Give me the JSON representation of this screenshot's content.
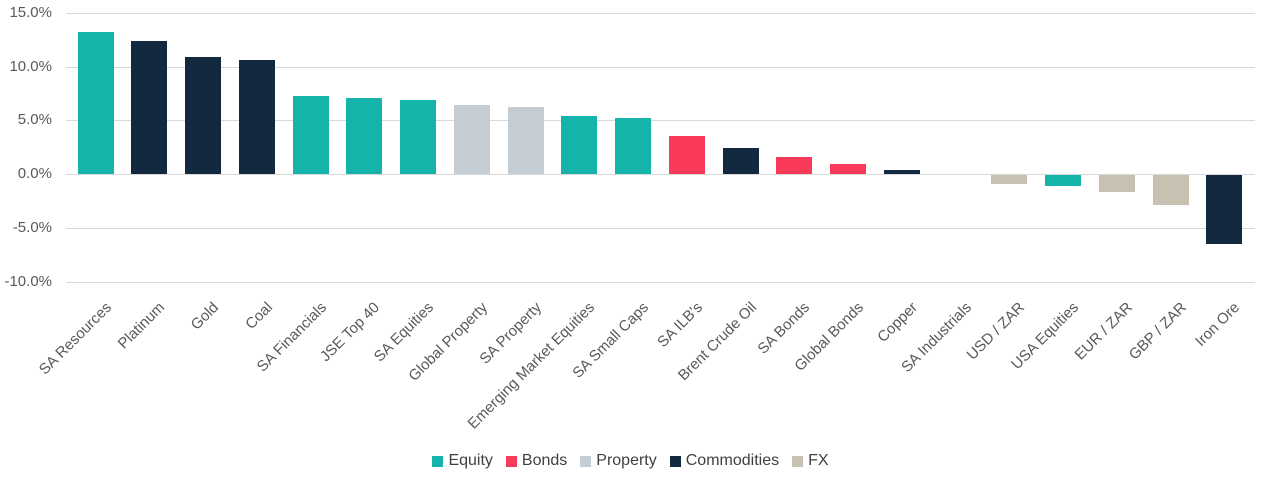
{
  "chart_data": {
    "type": "bar",
    "title": "",
    "xlabel": "",
    "ylabel": "",
    "unit": "%",
    "ylim": [
      -10,
      15
    ],
    "grid": true,
    "legend_position": "bottom",
    "yticks": [
      {
        "value": 15,
        "label": "15.0%"
      },
      {
        "value": 10,
        "label": "10.0%"
      },
      {
        "value": 5,
        "label": "5.0%"
      },
      {
        "value": 0,
        "label": "0.0%"
      },
      {
        "value": -5,
        "label": "-5.0%"
      },
      {
        "value": -10,
        "label": "-10.0%"
      }
    ],
    "legend": [
      {
        "name": "Equity",
        "color": "#14B4AB"
      },
      {
        "name": "Bonds",
        "color": "#FA3A59"
      },
      {
        "name": "Property",
        "color": "#C4CCD4"
      },
      {
        "name": "Commodities",
        "color": "#12293F"
      },
      {
        "name": "FX",
        "color": "#C8C1B2"
      }
    ],
    "bars": [
      {
        "label": "SA Resources",
        "value": 13.2,
        "series": "Equity"
      },
      {
        "label": "Platinum",
        "value": 12.4,
        "series": "Commodities"
      },
      {
        "label": "Gold",
        "value": 10.9,
        "series": "Commodities"
      },
      {
        "label": "Coal",
        "value": 10.6,
        "series": "Commodities"
      },
      {
        "label": "SA Financials",
        "value": 7.3,
        "series": "Equity"
      },
      {
        "label": "JSE Top 40",
        "value": 7.1,
        "series": "Equity"
      },
      {
        "label": "SA Equities",
        "value": 6.9,
        "series": "Equity"
      },
      {
        "label": "Global Property",
        "value": 6.4,
        "series": "Property"
      },
      {
        "label": "SA Property",
        "value": 6.2,
        "series": "Property"
      },
      {
        "label": "Emerging Market Equities",
        "value": 5.4,
        "series": "Equity"
      },
      {
        "label": "SA Small Caps",
        "value": 5.2,
        "series": "Equity"
      },
      {
        "label": "SA ILB's",
        "value": 3.5,
        "series": "Bonds"
      },
      {
        "label": "Brent Crude Oil",
        "value": 2.4,
        "series": "Commodities"
      },
      {
        "label": "SA Bonds",
        "value": 1.6,
        "series": "Bonds"
      },
      {
        "label": "Global Bonds",
        "value": 0.9,
        "series": "Bonds"
      },
      {
        "label": "Copper",
        "value": 0.4,
        "series": "Commodities"
      },
      {
        "label": "SA Industrials",
        "value": 0.0,
        "series": "Equity"
      },
      {
        "label": "USD / ZAR",
        "value": -0.8,
        "series": "FX"
      },
      {
        "label": "USA Equities",
        "value": -1.0,
        "series": "Equity"
      },
      {
        "label": "EUR / ZAR",
        "value": -1.6,
        "series": "FX"
      },
      {
        "label": "GBP / ZAR",
        "value": -2.8,
        "series": "FX"
      },
      {
        "label": "Iron Ore",
        "value": -6.4,
        "series": "Commodities"
      }
    ]
  },
  "colors": {
    "background": "#FFFFFF",
    "grid": "#D9D9D9",
    "axis_text": "#595959",
    "legend_text": "#404040"
  }
}
